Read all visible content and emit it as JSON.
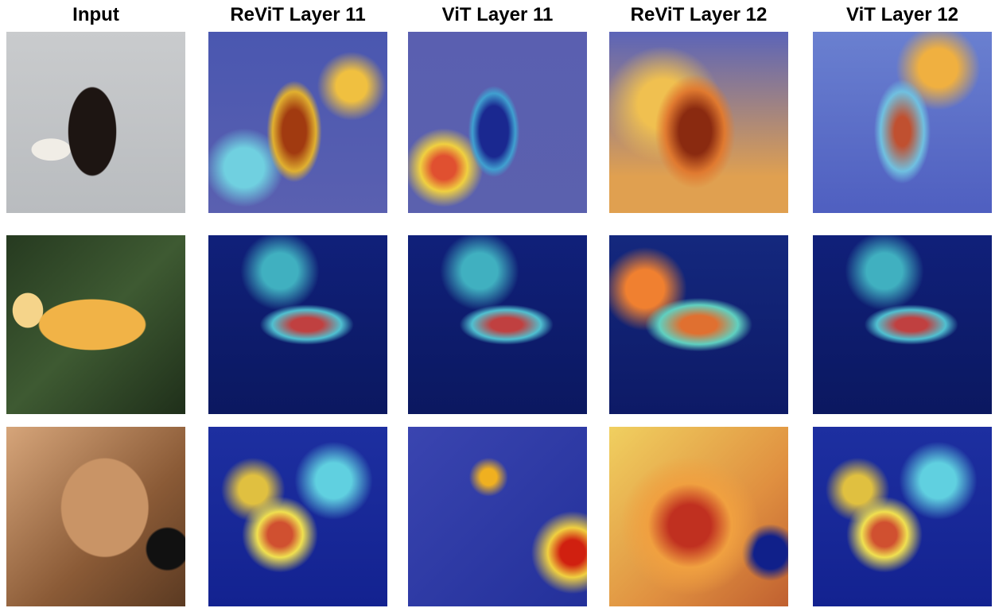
{
  "columns": [
    "Input",
    "ReViT Layer 11",
    "ViT Layer 11",
    "ReViT Layer 12",
    "ViT Layer 12"
  ]
}
